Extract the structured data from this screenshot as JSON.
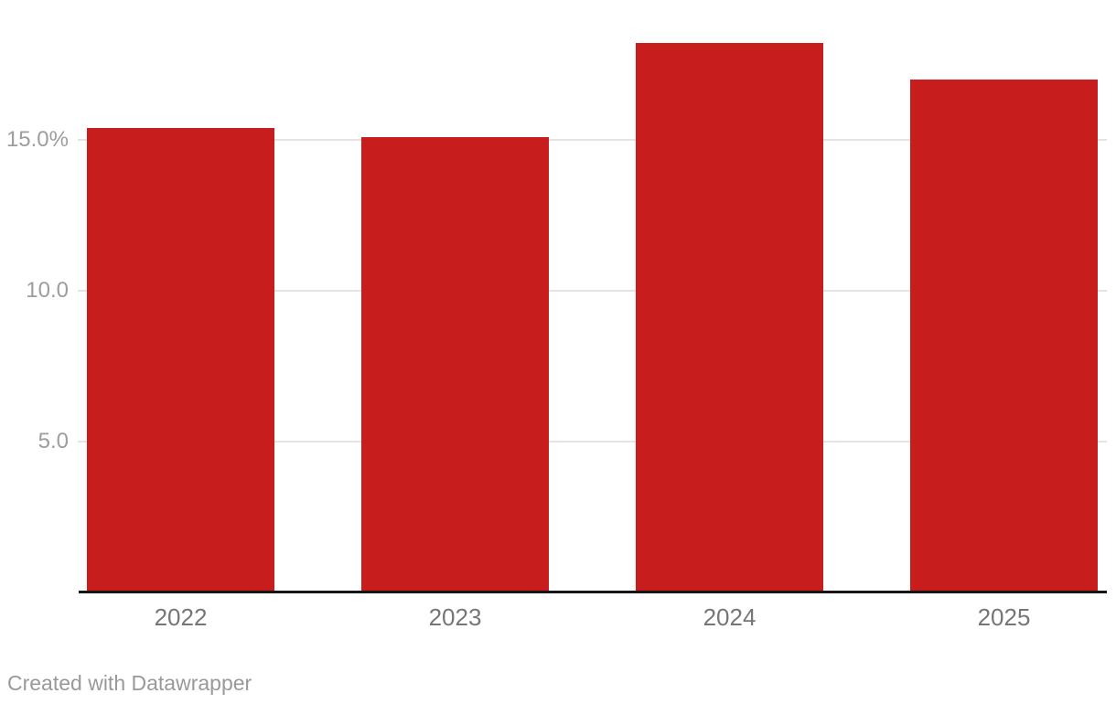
{
  "chart_data": {
    "type": "bar",
    "categories": [
      "2022",
      "2023",
      "2024",
      "2025"
    ],
    "values": [
      15.4,
      15.1,
      18.2,
      17.0
    ],
    "title": "",
    "xlabel": "",
    "ylabel": "",
    "ylim": [
      0,
      19.6
    ],
    "y_ticks": [
      {
        "value": 15,
        "label": "15.0%"
      },
      {
        "value": 10,
        "label": "10.0"
      },
      {
        "value": 5,
        "label": "5.0"
      }
    ],
    "grid": "horizontal",
    "legend": "none",
    "value_suffix": "%"
  },
  "colors": {
    "bar": "#c71e1d",
    "gridline": "#e4e4e4",
    "axis_line": "#161616",
    "y_tick_text": "#9d9d9d",
    "x_tick_text": "#767676",
    "attribution_text": "#999999",
    "background": "#ffffff"
  },
  "footer": {
    "attribution": "Created with Datawrapper"
  }
}
